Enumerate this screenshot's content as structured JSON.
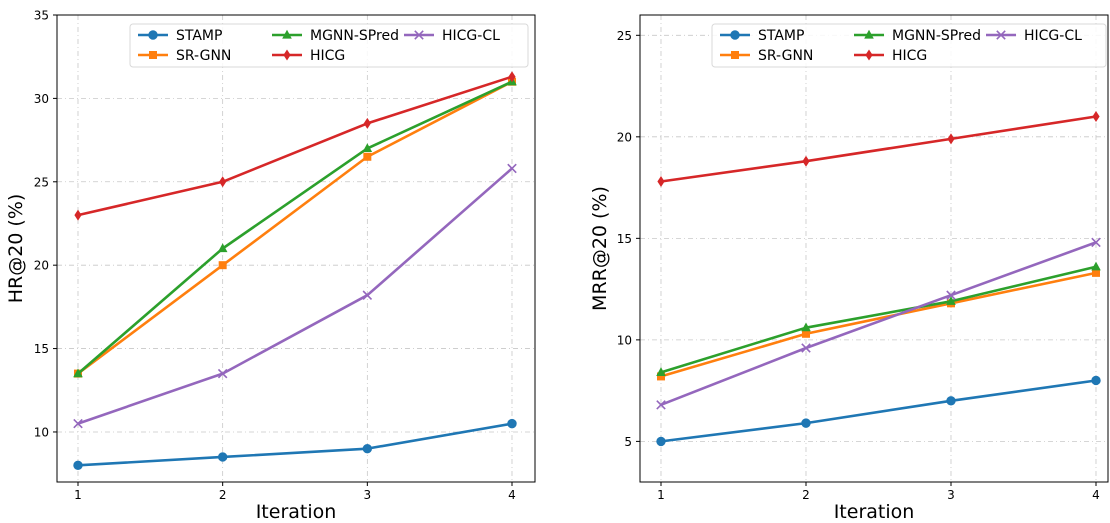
{
  "chart_data": [
    {
      "type": "line",
      "xlabel": "Iteration",
      "ylabel": "HR@20 (%)",
      "x": [
        1,
        2,
        3,
        4
      ],
      "x_ticks": [
        "1",
        "2",
        "3",
        "4"
      ],
      "ylim": [
        7,
        35
      ],
      "y_ticks": [
        "10",
        "15",
        "20",
        "25",
        "30",
        "35"
      ],
      "grid": true,
      "legend_position": "top-right",
      "legend_columns": 3,
      "series": [
        {
          "name": "STAMP",
          "values": [
            8.0,
            8.5,
            9.0,
            10.5
          ],
          "color": "#1f77b4",
          "marker": "circle"
        },
        {
          "name": "SR-GNN",
          "values": [
            13.5,
            20.0,
            26.5,
            31.0
          ],
          "color": "#ff7f0e",
          "marker": "square"
        },
        {
          "name": "MGNN-SPred",
          "values": [
            13.5,
            21.0,
            27.0,
            31.0
          ],
          "color": "#2ca02c",
          "marker": "triangle"
        },
        {
          "name": "HICG",
          "values": [
            23.0,
            25.0,
            28.5,
            31.3
          ],
          "color": "#d62728",
          "marker": "diamond"
        },
        {
          "name": "HICG-CL",
          "values": [
            10.5,
            13.5,
            18.2,
            25.8
          ],
          "color": "#9467bd",
          "marker": "x"
        }
      ]
    },
    {
      "type": "line",
      "xlabel": "Iteration",
      "ylabel": "MRR@20 (%)",
      "x": [
        1,
        2,
        3,
        4
      ],
      "x_ticks": [
        "1",
        "2",
        "3",
        "4"
      ],
      "ylim": [
        3,
        26
      ],
      "y_ticks": [
        "5",
        "10",
        "15",
        "20",
        "25"
      ],
      "grid": true,
      "legend_position": "top-right",
      "legend_columns": 3,
      "series": [
        {
          "name": "STAMP",
          "values": [
            5.0,
            5.9,
            7.0,
            8.0
          ],
          "color": "#1f77b4",
          "marker": "circle"
        },
        {
          "name": "SR-GNN",
          "values": [
            8.2,
            10.3,
            11.8,
            13.3
          ],
          "color": "#ff7f0e",
          "marker": "square"
        },
        {
          "name": "MGNN-SPred",
          "values": [
            8.4,
            10.6,
            11.9,
            13.6
          ],
          "color": "#2ca02c",
          "marker": "triangle"
        },
        {
          "name": "HICG",
          "values": [
            17.8,
            18.8,
            19.9,
            21.0
          ],
          "color": "#d62728",
          "marker": "diamond"
        },
        {
          "name": "HICG-CL",
          "values": [
            6.8,
            9.6,
            12.2,
            14.8
          ],
          "color": "#9467bd",
          "marker": "x"
        }
      ]
    }
  ]
}
